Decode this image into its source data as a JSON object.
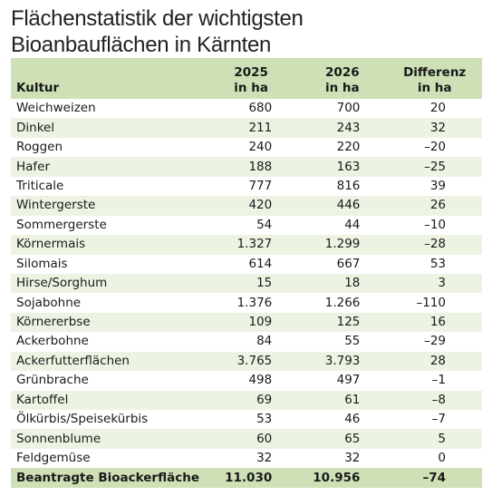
{
  "header": {
    "title_lines": [
      "Flächenstatistik der wichtigsten",
      "Bioanbauflächen in Kärnten"
    ]
  },
  "table": {
    "columns": [
      [
        "Kultur"
      ],
      [
        "2025",
        "in ha"
      ],
      [
        "2026",
        "in ha"
      ],
      [
        "Differenz",
        "in ha"
      ]
    ],
    "rows": [
      [
        "Weichweizen",
        "680",
        "700",
        "20"
      ],
      [
        "Dinkel",
        "211",
        "243",
        "32"
      ],
      [
        "Roggen",
        "240",
        "220",
        "–20"
      ],
      [
        "Hafer",
        "188",
        "163",
        "–25"
      ],
      [
        "Triticale",
        "777",
        "816",
        "39"
      ],
      [
        "Wintergerste",
        "420",
        "446",
        "26"
      ],
      [
        "Sommergerste",
        "54",
        "44",
        "–10"
      ],
      [
        "Körnermais",
        "1.327",
        "1.299",
        "–28"
      ],
      [
        "Silomais",
        "614",
        "667",
        "53"
      ],
      [
        "Hirse/Sorghum",
        "15",
        "18",
        "3"
      ],
      [
        "Sojabohne",
        "1.376",
        "1.266",
        "–110"
      ],
      [
        "Körnererbse",
        "109",
        "125",
        "16"
      ],
      [
        "Ackerbohne",
        "84",
        "55",
        "–29"
      ],
      [
        "Ackerfutterflächen",
        "3.765",
        "3.793",
        "28"
      ],
      [
        "Grünbrache",
        "498",
        "497",
        "–1"
      ],
      [
        "Kartoffel",
        "69",
        "61",
        "–8"
      ],
      [
        "Ölkürbis/Speisekürbis",
        "53",
        "46",
        "–7"
      ],
      [
        "Sonnenblume",
        "60",
        "65",
        "5"
      ],
      [
        "Feldgemüse",
        "32",
        "32",
        "0"
      ]
    ],
    "total": [
      "Beantragte Bioackerfläche",
      "11.030",
      "10.956",
      "–74"
    ]
  }
}
